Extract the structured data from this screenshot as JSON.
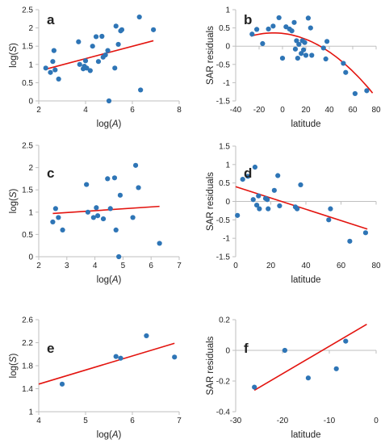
{
  "colors": {
    "points": "#2E75B6",
    "fit": "#E3140F",
    "axis": "#BFBFBF"
  },
  "chart_data": [
    {
      "panel": "a",
      "type": "scatter",
      "xlabel": "log(A)",
      "ylabel": "log(S)",
      "xlim": [
        2,
        8
      ],
      "ylim": [
        0,
        2.5
      ],
      "xticks": [
        2,
        4,
        6,
        8
      ],
      "yticks": [
        0,
        0.5,
        1,
        1.5,
        2,
        2.5
      ],
      "tick_labels_x": [
        "2",
        "4",
        "6",
        "8"
      ],
      "tick_labels_y": [
        "0",
        "0.5",
        "1",
        "1.5",
        "2",
        "2.5"
      ],
      "fit": {
        "kind": "line",
        "x": [
          2.3,
          6.9
        ],
        "y": [
          0.87,
          1.65
        ]
      },
      "points": [
        [
          2.3,
          0.9
        ],
        [
          2.5,
          0.78
        ],
        [
          2.6,
          1.08
        ],
        [
          2.65,
          1.38
        ],
        [
          2.7,
          0.85
        ],
        [
          2.85,
          0.6
        ],
        [
          3.7,
          1.62
        ],
        [
          3.75,
          1.0
        ],
        [
          3.9,
          0.88
        ],
        [
          3.95,
          0.95
        ],
        [
          4.0,
          1.1
        ],
        [
          4.05,
          0.9
        ],
        [
          4.2,
          0.83
        ],
        [
          4.3,
          1.5
        ],
        [
          4.45,
          1.76
        ],
        [
          4.55,
          1.08
        ],
        [
          4.7,
          1.77
        ],
        [
          4.75,
          1.2
        ],
        [
          4.85,
          1.26
        ],
        [
          4.95,
          1.38
        ],
        [
          5.0,
          0.0
        ],
        [
          5.25,
          0.9
        ],
        [
          5.3,
          2.05
        ],
        [
          5.4,
          1.55
        ],
        [
          5.5,
          1.92
        ],
        [
          5.55,
          1.95
        ],
        [
          6.3,
          2.3
        ],
        [
          6.35,
          0.3
        ],
        [
          6.9,
          1.95
        ]
      ]
    },
    {
      "panel": "b",
      "type": "scatter",
      "xlabel": "latitude",
      "ylabel": "SAR residuals",
      "xlim": [
        -40,
        80
      ],
      "ylim": [
        -1.5,
        1
      ],
      "xticks": [
        -40,
        -20,
        0,
        20,
        40,
        60,
        80
      ],
      "yticks": [
        -1.5,
        -1,
        -0.5,
        0,
        0.5,
        1
      ],
      "tick_labels_x": [
        "-40",
        "-20",
        "0",
        "20",
        "40",
        "60",
        "80"
      ],
      "tick_labels_y": [
        "-1.5",
        "-1",
        "-0.5",
        "0",
        "0.5",
        "1"
      ],
      "fit": {
        "kind": "quadratic",
        "x_range": [
          -27,
          77
        ],
        "coef": [
          0.35,
          -0.0035,
          -0.00023
        ]
      },
      "points": [
        [
          -26,
          0.33
        ],
        [
          -22,
          0.46
        ],
        [
          -17,
          0.07
        ],
        [
          -12,
          0.47
        ],
        [
          -8,
          0.55
        ],
        [
          -3,
          0.78
        ],
        [
          0,
          -0.33
        ],
        [
          3,
          0.53
        ],
        [
          6,
          0.47
        ],
        [
          8,
          0.42
        ],
        [
          10,
          0.65
        ],
        [
          11,
          -0.08
        ],
        [
          12,
          0.15
        ],
        [
          13,
          -0.33
        ],
        [
          14,
          0.05
        ],
        [
          16,
          -0.2
        ],
        [
          17,
          0.15
        ],
        [
          18,
          -0.1
        ],
        [
          19,
          0.1
        ],
        [
          20,
          -0.25
        ],
        [
          22,
          0.77
        ],
        [
          24,
          0.5
        ],
        [
          25,
          -0.25
        ],
        [
          35,
          -0.05
        ],
        [
          37,
          -0.35
        ],
        [
          38,
          0.13
        ],
        [
          52,
          -0.47
        ],
        [
          54,
          -0.72
        ],
        [
          62,
          -1.3
        ],
        [
          72,
          -1.22
        ]
      ]
    },
    {
      "panel": "c",
      "type": "scatter",
      "xlabel": "log(A)",
      "ylabel": "log(S)",
      "xlim": [
        2,
        7
      ],
      "ylim": [
        0,
        2.5
      ],
      "xticks": [
        2,
        3,
        4,
        5,
        6,
        7
      ],
      "yticks": [
        0,
        0.5,
        1,
        1.5,
        2,
        2.5
      ],
      "tick_labels_x": [
        "2",
        "3",
        "4",
        "5",
        "6",
        "7"
      ],
      "tick_labels_y": [
        "0",
        "0.5",
        "1",
        "1.5",
        "2",
        "2.5"
      ],
      "fit": {
        "kind": "line",
        "x": [
          2.5,
          6.3
        ],
        "y": [
          0.97,
          1.13
        ]
      },
      "points": [
        [
          2.5,
          0.78
        ],
        [
          2.6,
          1.08
        ],
        [
          2.7,
          0.88
        ],
        [
          2.85,
          0.6
        ],
        [
          3.7,
          1.62
        ],
        [
          3.75,
          1.0
        ],
        [
          3.95,
          0.88
        ],
        [
          4.05,
          1.1
        ],
        [
          4.1,
          0.92
        ],
        [
          4.3,
          0.85
        ],
        [
          4.45,
          1.75
        ],
        [
          4.55,
          1.08
        ],
        [
          4.7,
          1.77
        ],
        [
          4.75,
          0.6
        ],
        [
          4.85,
          0.0
        ],
        [
          4.9,
          1.38
        ],
        [
          5.35,
          0.88
        ],
        [
          5.45,
          2.05
        ],
        [
          5.55,
          1.55
        ],
        [
          6.3,
          0.3
        ]
      ]
    },
    {
      "panel": "d",
      "type": "scatter",
      "xlabel": "latitude",
      "ylabel": "SAR residuals",
      "xlim": [
        0,
        80
      ],
      "ylim": [
        -1.5,
        1.5
      ],
      "xticks": [
        0,
        20,
        40,
        60,
        80
      ],
      "yticks": [
        -1.5,
        -1,
        -0.5,
        0,
        0.5,
        1,
        1.5
      ],
      "tick_labels_x": [
        "0",
        "20",
        "40",
        "60",
        "80"
      ],
      "tick_labels_y": [
        "-1.5",
        "-1",
        "-0.5",
        "0",
        "0.5",
        "1",
        "1.5"
      ],
      "fit": {
        "kind": "line",
        "x": [
          0,
          75
        ],
        "y": [
          0.4,
          -0.75
        ]
      },
      "points": [
        [
          1,
          -0.38
        ],
        [
          4,
          0.6
        ],
        [
          7,
          0.68
        ],
        [
          10,
          0.05
        ],
        [
          11,
          0.93
        ],
        [
          12,
          -0.1
        ],
        [
          13,
          0.15
        ],
        [
          13.5,
          -0.2
        ],
        [
          17,
          0.08
        ],
        [
          18,
          0.05
        ],
        [
          18.5,
          -0.2
        ],
        [
          22,
          0.3
        ],
        [
          24,
          0.7
        ],
        [
          25,
          -0.12
        ],
        [
          34,
          -0.15
        ],
        [
          35,
          -0.2
        ],
        [
          37,
          0.45
        ],
        [
          53,
          -0.5
        ],
        [
          54,
          -0.2
        ],
        [
          65,
          -1.08
        ],
        [
          74,
          -0.85
        ]
      ]
    },
    {
      "panel": "e",
      "type": "scatter",
      "xlabel": "log(A)",
      "ylabel": "log(S)",
      "xlim": [
        4,
        7
      ],
      "ylim": [
        1,
        2.6
      ],
      "xticks": [
        4,
        5,
        6,
        7
      ],
      "yticks": [
        1,
        1.4,
        1.8,
        2.2,
        2.6
      ],
      "tick_labels_x": [
        "4",
        "5",
        "6",
        "7"
      ],
      "tick_labels_y": [
        "1",
        "1.4",
        "1.8",
        "2.2",
        "2.6"
      ],
      "fit": {
        "kind": "line",
        "x": [
          4,
          6.9
        ],
        "y": [
          1.48,
          2.19
        ]
      },
      "points": [
        [
          4.5,
          1.48
        ],
        [
          5.65,
          1.96
        ],
        [
          5.75,
          1.93
        ],
        [
          6.3,
          2.32
        ],
        [
          6.9,
          1.95
        ]
      ]
    },
    {
      "panel": "f",
      "type": "scatter",
      "xlabel": "latitude",
      "ylabel": "SAR residuals",
      "xlim": [
        -30,
        0
      ],
      "ylim": [
        -0.4,
        0.2
      ],
      "xticks": [
        -30,
        -20,
        -10,
        0
      ],
      "yticks": [
        -0.4,
        -0.2,
        0,
        0.2
      ],
      "tick_labels_x": [
        "-30",
        "-20",
        "-10",
        "0"
      ],
      "tick_labels_y": [
        "-0.4",
        "-0.2",
        "0",
        "0.2"
      ],
      "fit": {
        "kind": "line",
        "x": [
          -26,
          -2
        ],
        "y": [
          -0.26,
          0.17
        ]
      },
      "points": [
        [
          -26,
          -0.24
        ],
        [
          -19.5,
          0.0
        ],
        [
          -14.5,
          -0.18
        ],
        [
          -8.5,
          -0.12
        ],
        [
          -6.5,
          0.06
        ]
      ]
    }
  ]
}
